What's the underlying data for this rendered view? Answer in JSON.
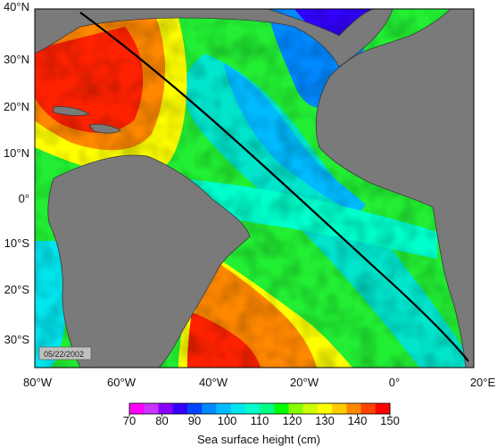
{
  "map": {
    "date_stamp": "05/22/2002",
    "lat_labels": [
      "40°N",
      "30°N",
      "20°N",
      "10°N",
      "0°",
      "10°S",
      "20°S",
      "30°S"
    ],
    "lon_labels": [
      "80°W",
      "60°W",
      "40°W",
      "20°W",
      "0°",
      "20°E"
    ],
    "land_color": "#7a7a7a",
    "track_color": "#000000"
  },
  "colorbar": {
    "title": "Sea surface height (cm)",
    "tick_labels": [
      "70",
      "80",
      "90",
      "100",
      "110",
      "120",
      "130",
      "140",
      "150"
    ],
    "colors": [
      "#ff00ff",
      "#cc33ff",
      "#8800ff",
      "#3300ff",
      "#0044ff",
      "#0088ff",
      "#00bbff",
      "#00e5ee",
      "#00ffcc",
      "#00ff88",
      "#00ff00",
      "#88ff00",
      "#ccff00",
      "#ffff00",
      "#ffcc00",
      "#ff8800",
      "#ff4400",
      "#ff0000"
    ]
  }
}
